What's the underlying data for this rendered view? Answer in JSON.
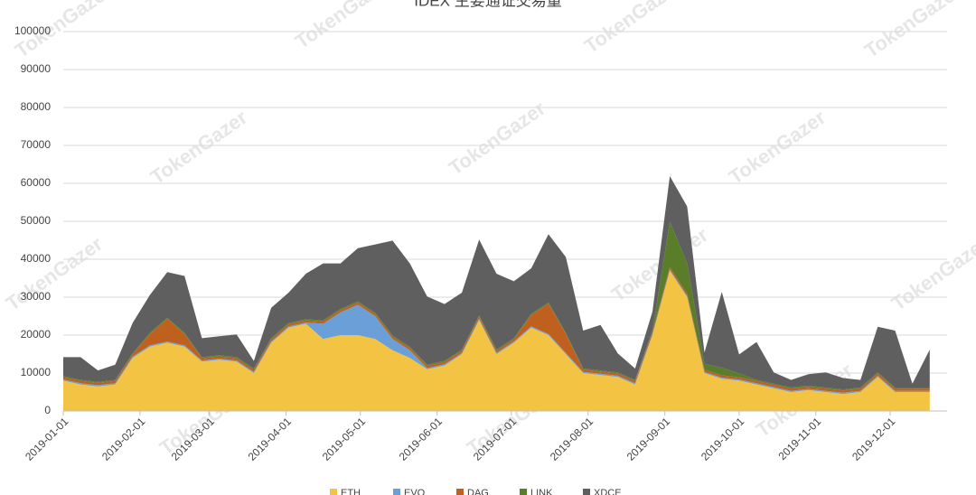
{
  "chart_data": {
    "type": "stacked_area",
    "title": "IDEX 主要通证交易量",
    "watermark": "TokenGazer",
    "x": [
      "2019-01-01",
      "2019-01-08",
      "2019-01-15",
      "2019-01-22",
      "2019-01-29",
      "2019-02-05",
      "2019-02-12",
      "2019-02-19",
      "2019-02-26",
      "2019-03-05",
      "2019-03-12",
      "2019-03-19",
      "2019-03-26",
      "2019-04-02",
      "2019-04-09",
      "2019-04-16",
      "2019-04-23",
      "2019-04-30",
      "2019-05-07",
      "2019-05-14",
      "2019-05-21",
      "2019-05-28",
      "2019-06-04",
      "2019-06-11",
      "2019-06-18",
      "2019-06-25",
      "2019-07-02",
      "2019-07-09",
      "2019-07-16",
      "2019-07-23",
      "2019-07-30",
      "2019-08-06",
      "2019-08-13",
      "2019-08-20",
      "2019-08-27",
      "2019-09-03",
      "2019-09-10",
      "2019-09-17",
      "2019-09-24",
      "2019-10-01",
      "2019-10-08",
      "2019-10-15",
      "2019-10-22",
      "2019-10-29",
      "2019-11-05",
      "2019-11-12",
      "2019-11-19",
      "2019-11-26",
      "2019-12-03",
      "2019-12-10",
      "2019-12-17"
    ],
    "series": [
      {
        "name": "ETH",
        "color": "#f3c343",
        "values": [
          8000,
          7000,
          6500,
          7000,
          14000,
          17000,
          18000,
          17000,
          13000,
          13500,
          13000,
          10000,
          18000,
          22000,
          23000,
          19000,
          20000,
          20000,
          19000,
          16000,
          14000,
          11000,
          12000,
          15000,
          24000,
          15000,
          18000,
          22000,
          20000,
          15000,
          10000,
          9500,
          9000,
          7000,
          20000,
          37000,
          30000,
          10000,
          8500,
          8000,
          7000,
          6000,
          5000,
          5500,
          5000,
          4500,
          5000,
          9000,
          5000,
          5000,
          5000
        ]
      },
      {
        "name": "EVO",
        "color": "#6a9fd8",
        "values": [
          300,
          300,
          300,
          300,
          300,
          300,
          300,
          300,
          300,
          300,
          300,
          300,
          300,
          300,
          300,
          4000,
          6000,
          8000,
          6000,
          3000,
          2000,
          300,
          300,
          300,
          300,
          300,
          300,
          300,
          300,
          300,
          300,
          300,
          300,
          300,
          300,
          300,
          300,
          300,
          300,
          300,
          300,
          300,
          300,
          300,
          300,
          300,
          300,
          300,
          300,
          300,
          300
        ]
      },
      {
        "name": "DAG",
        "color": "#c0601f",
        "values": [
          600,
          600,
          600,
          600,
          600,
          3000,
          6000,
          3000,
          600,
          600,
          600,
          600,
          600,
          600,
          600,
          600,
          600,
          600,
          600,
          600,
          600,
          600,
          600,
          600,
          600,
          600,
          600,
          3000,
          8000,
          5000,
          600,
          600,
          600,
          600,
          600,
          600,
          600,
          600,
          600,
          600,
          600,
          600,
          600,
          600,
          600,
          600,
          600,
          600,
          600,
          600,
          600
        ]
      },
      {
        "name": "LINK",
        "color": "#5a7d2a",
        "values": [
          300,
          300,
          300,
          300,
          300,
          300,
          300,
          300,
          300,
          300,
          300,
          300,
          300,
          300,
          300,
          300,
          300,
          300,
          300,
          300,
          300,
          300,
          300,
          300,
          300,
          300,
          300,
          300,
          300,
          300,
          300,
          300,
          300,
          300,
          300,
          12000,
          8000,
          1500,
          2000,
          1000,
          300,
          300,
          300,
          300,
          300,
          300,
          300,
          300,
          300,
          300,
          300
        ]
      },
      {
        "name": "XDCE",
        "color": "#5f5f5f",
        "values": [
          5000,
          6000,
          3000,
          4000,
          8000,
          10000,
          12000,
          15000,
          5000,
          5000,
          6000,
          2000,
          8000,
          8000,
          12000,
          15000,
          12000,
          14000,
          18000,
          25000,
          22000,
          18000,
          15000,
          15000,
          20000,
          20000,
          15000,
          12000,
          18000,
          20000,
          10000,
          12000,
          5000,
          3000,
          5000,
          12000,
          15000,
          3000,
          20000,
          5000,
          10000,
          3000,
          2000,
          3000,
          4000,
          3000,
          2000,
          12000,
          15000,
          1000,
          10000
        ]
      }
    ],
    "xlim": [
      "2019-01-01",
      "2019-12-24"
    ],
    "xticks": [
      "2019-01-01",
      "2019-02-01",
      "2019-03-01",
      "2019-04-01",
      "2019-05-01",
      "2019-06-01",
      "2019-07-01",
      "2019-08-01",
      "2019-09-01",
      "2019-10-01",
      "2019-11-01",
      "2019-12-01"
    ],
    "ylim": [
      0,
      100000
    ],
    "yticks": [
      0,
      10000,
      20000,
      30000,
      40000,
      50000,
      60000,
      70000,
      80000,
      90000,
      100000
    ],
    "grid": true
  }
}
